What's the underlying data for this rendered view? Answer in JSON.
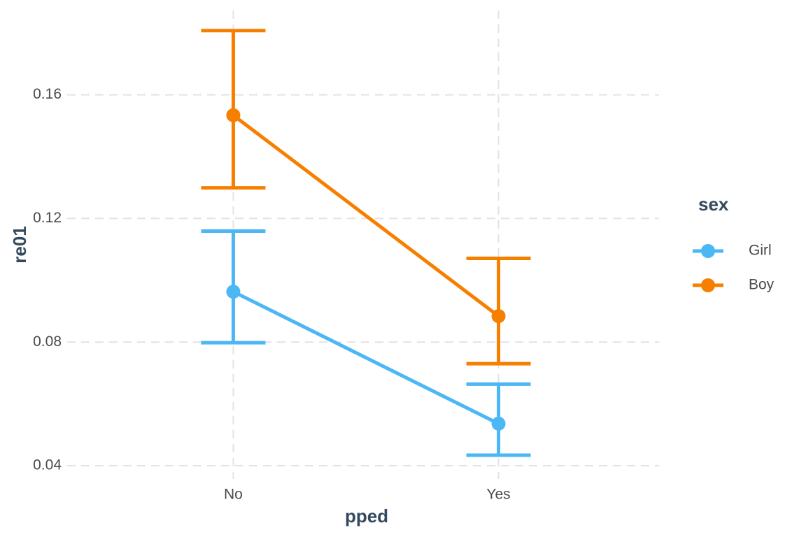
{
  "chart_data": {
    "type": "line",
    "x_label": "pped",
    "y_label": "re01",
    "categories": [
      "No",
      "Yes"
    ],
    "series": [
      {
        "name": "Girl",
        "color": "#4cb7f5",
        "values": [
          0.0963,
          0.0536
        ],
        "lower": [
          0.0798,
          0.0434
        ],
        "upper": [
          0.1159,
          0.0664
        ]
      },
      {
        "name": "Boy",
        "color": "#f77f00",
        "values": [
          0.1534,
          0.0884
        ],
        "lower": [
          0.1299,
          0.073
        ],
        "upper": [
          0.1808,
          0.1071
        ]
      }
    ],
    "ylim": [
      0.0357,
      0.1873
    ],
    "yticks": [
      0.04,
      0.08,
      0.12,
      0.16
    ],
    "grid": true,
    "legend": {
      "title": "sex",
      "position": "right"
    }
  }
}
